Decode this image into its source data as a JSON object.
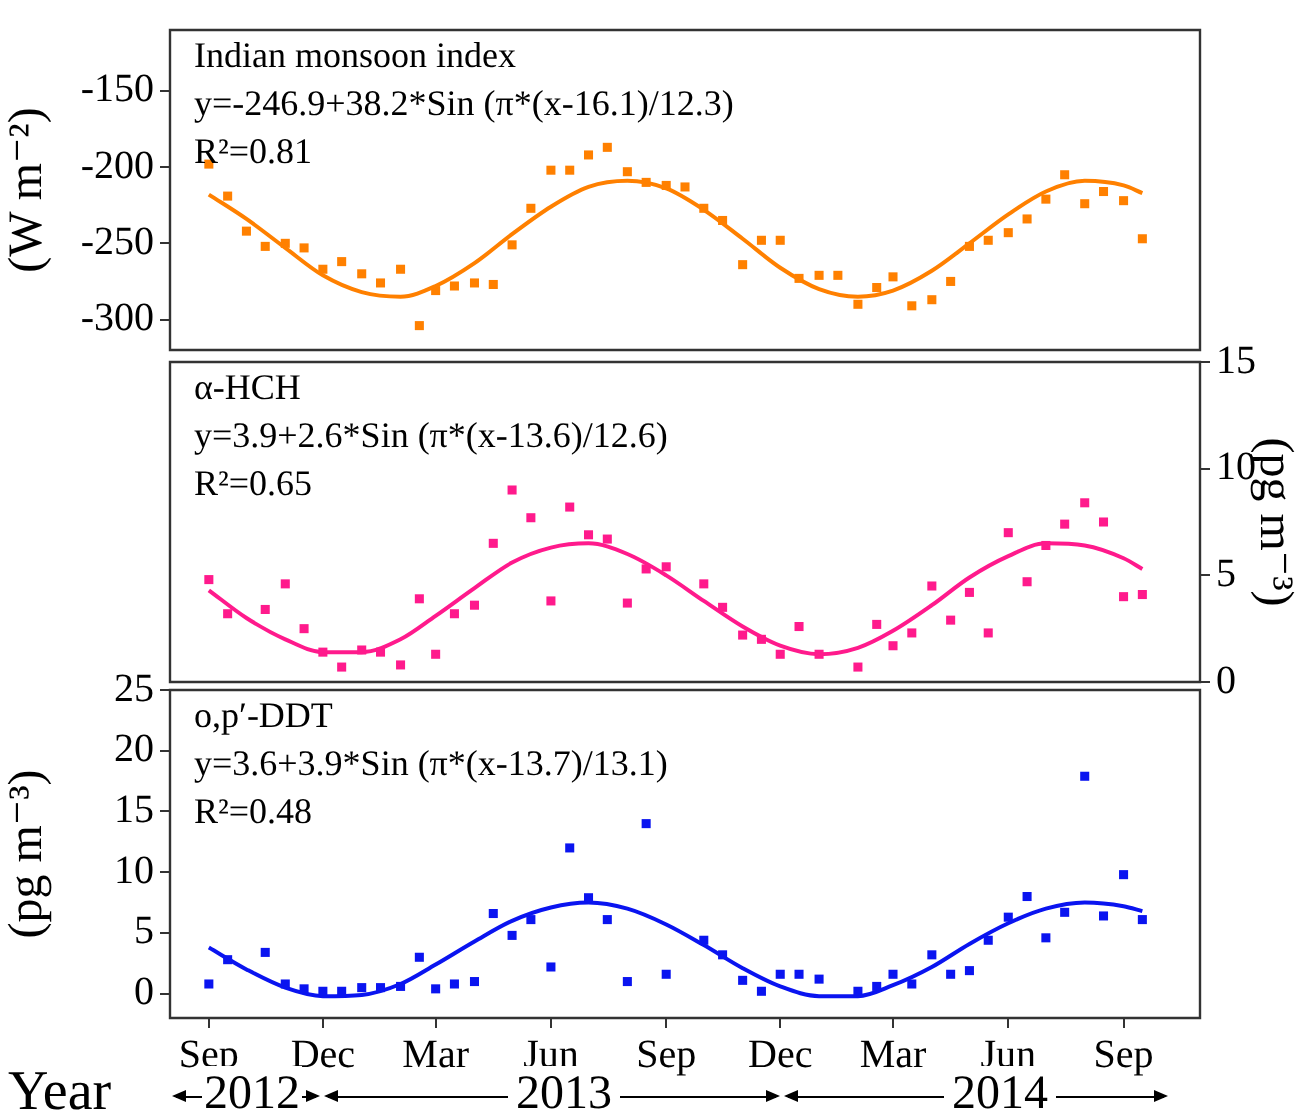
{
  "chart_data": [
    {
      "type": "scatter",
      "ylabel": "(W m⁻²)",
      "xlim": [
        "2012-08-01",
        "2014-11-01"
      ],
      "ylim": [
        -320,
        -110
      ],
      "yticks": [
        -150,
        -200,
        -250,
        -300
      ],
      "tick_labels": "y",
      "grid": false,
      "legend": false,
      "marker": "square",
      "annotations": [
        "Indian monsoon index",
        "y=-246.9+38.2*Sin (π*(x-16.1)/12.3)",
        "R²=0.81"
      ],
      "x": [
        "2012-09-01",
        "2012-09-16",
        "2012-10-01",
        "2012-10-16",
        "2012-11-01",
        "2012-11-16",
        "2012-12-01",
        "2012-12-16",
        "2013-01-01",
        "2013-01-16",
        "2013-02-01",
        "2013-02-16",
        "2013-03-01",
        "2013-03-16",
        "2013-04-01",
        "2013-04-16",
        "2013-05-01",
        "2013-05-16",
        "2013-06-01",
        "2013-06-16",
        "2013-07-01",
        "2013-07-16",
        "2013-08-01",
        "2013-08-16",
        "2013-09-01",
        "2013-09-16",
        "2013-10-01",
        "2013-10-16",
        "2013-11-01",
        "2013-11-16",
        "2013-12-01",
        "2013-12-16",
        "2014-01-01",
        "2014-01-16",
        "2014-02-01",
        "2014-02-16",
        "2014-03-01",
        "2014-03-16",
        "2014-04-01",
        "2014-04-16",
        "2014-05-01",
        "2014-05-16",
        "2014-06-01",
        "2014-06-16",
        "2014-07-01",
        "2014-07-16",
        "2014-08-01",
        "2014-08-16",
        "2014-09-01",
        "2014-09-16"
      ],
      "series": [
        {
          "type": "scatter",
          "color": "#ff8000",
          "values": [
            -198,
            -219,
            -242,
            -252,
            -250,
            -253,
            -267,
            -262,
            -270,
            -276,
            -267,
            -304,
            -281,
            -278,
            -276,
            -277,
            -251,
            -227,
            -202,
            -202,
            -192,
            -187,
            -203,
            -210,
            -212,
            -213,
            -227,
            -235,
            -264,
            -248,
            -248,
            -273,
            -271,
            -271,
            -290,
            -279,
            -272,
            -291,
            -287,
            -275,
            -252,
            -248,
            -243,
            -234,
            -221,
            -205,
            -224,
            -216,
            -222,
            -247
          ]
        },
        {
          "type": "line",
          "color": "#ff8000",
          "marker": "none",
          "x": [
            "2012-09-01",
            "2012-10-01",
            "2012-11-01",
            "2012-12-01",
            "2013-01-01",
            "2013-02-01",
            "2013-03-01",
            "2013-04-01",
            "2013-05-01",
            "2013-06-01",
            "2013-07-01",
            "2013-08-01",
            "2013-09-01",
            "2013-10-01",
            "2013-11-01",
            "2013-12-01",
            "2014-01-01",
            "2014-02-01",
            "2014-03-01",
            "2014-04-01",
            "2014-05-01",
            "2014-06-01",
            "2014-07-01",
            "2014-08-01",
            "2014-09-01",
            "2014-09-16"
          ],
          "values": [
            -218,
            -234,
            -253,
            -271,
            -282,
            -285,
            -278,
            -263,
            -244,
            -226,
            -213,
            -209,
            -214,
            -228,
            -247,
            -266,
            -280,
            -285,
            -281,
            -268,
            -250,
            -231,
            -216,
            -209,
            -212,
            -217
          ]
        }
      ]
    },
    {
      "type": "scatter",
      "y2label": "(pg m⁻³)",
      "xlim": [
        "2012-08-01",
        "2014-11-01"
      ],
      "y2lim": [
        0,
        15
      ],
      "y2ticks": [
        0,
        5,
        10,
        15
      ],
      "tick_labels": "y",
      "grid": false,
      "legend": false,
      "marker": "square",
      "annotations": [
        "α-HCH",
        "y=3.9+2.6*Sin (π*(x-13.6)/12.6)",
        "R²=0.65"
      ],
      "x": [
        "2012-09-01",
        "2012-09-16",
        "2012-10-01",
        "2012-10-16",
        "2012-11-01",
        "2012-11-16",
        "2012-12-01",
        "2012-12-16",
        "2013-01-01",
        "2013-01-16",
        "2013-02-01",
        "2013-02-16",
        "2013-03-01",
        "2013-03-16",
        "2013-04-01",
        "2013-04-16",
        "2013-05-01",
        "2013-05-16",
        "2013-06-01",
        "2013-06-16",
        "2013-07-01",
        "2013-07-16",
        "2013-08-01",
        "2013-08-16",
        "2013-09-01",
        "2013-09-16",
        "2013-10-01",
        "2013-10-16",
        "2013-11-01",
        "2013-11-16",
        "2013-12-01",
        "2013-12-16",
        "2014-01-01",
        "2014-01-16",
        "2014-02-01",
        "2014-02-16",
        "2014-03-01",
        "2014-03-16",
        "2014-04-01",
        "2014-04-16",
        "2014-05-01",
        "2014-05-16",
        "2014-06-01",
        "2014-06-16",
        "2014-07-01",
        "2014-07-16",
        "2014-08-01",
        "2014-08-16",
        "2014-09-01",
        "2014-09-16"
      ],
      "series": [
        {
          "type": "scatter",
          "axis": "y2",
          "color": "#ff1a8c",
          "values": [
            4.8,
            3.2,
            null,
            3.4,
            4.6,
            2.5,
            1.4,
            0.7,
            1.5,
            1.4,
            0.8,
            3.9,
            1.3,
            3.2,
            3.6,
            6.5,
            9.0,
            7.7,
            3.8,
            8.2,
            6.9,
            6.7,
            3.7,
            5.3,
            5.4,
            null,
            4.6,
            3.5,
            2.2,
            2.0,
            1.3,
            2.6,
            1.3,
            null,
            0.7,
            2.7,
            1.7,
            2.3,
            4.5,
            2.9,
            4.2,
            2.3,
            7.0,
            4.7,
            6.4,
            7.4,
            8.4,
            7.5,
            4.0,
            4.1
          ]
        },
        {
          "type": "line",
          "axis": "y2",
          "color": "#ff1a8c",
          "marker": "none",
          "x": [
            "2012-09-01",
            "2012-10-01",
            "2012-11-01",
            "2012-12-01",
            "2013-01-01",
            "2013-02-01",
            "2013-03-01",
            "2013-04-01",
            "2013-05-01",
            "2013-06-01",
            "2013-07-01",
            "2013-08-01",
            "2013-09-01",
            "2013-10-01",
            "2013-11-01",
            "2013-12-01",
            "2014-01-01",
            "2014-02-01",
            "2014-03-01",
            "2014-04-01",
            "2014-05-01",
            "2014-06-01",
            "2014-07-01",
            "2014-08-01",
            "2014-09-01",
            "2014-09-16"
          ],
          "values": [
            4.3,
            3.0,
            2.0,
            1.4,
            1.4,
            2.0,
            3.1,
            4.4,
            5.6,
            6.3,
            6.5,
            6.0,
            5.0,
            3.8,
            2.6,
            1.7,
            1.3,
            1.6,
            2.4,
            3.6,
            4.9,
            5.9,
            6.5,
            6.4,
            5.8,
            5.3
          ]
        }
      ]
    },
    {
      "type": "scatter",
      "ylabel": "(pg m⁻³)",
      "xlabel": "Year",
      "xlim": [
        "2012-08-01",
        "2014-11-01"
      ],
      "xticks": [
        {
          "value": "2012-09-01",
          "label": "Sep"
        },
        {
          "value": "2012-12-01",
          "label": "Dec"
        },
        {
          "value": "2013-03-01",
          "label": "Mar"
        },
        {
          "value": "2013-06-01",
          "label": "Jun"
        },
        {
          "value": "2013-09-01",
          "label": "Sep"
        },
        {
          "value": "2013-12-01",
          "label": "Dec"
        },
        {
          "value": "2014-03-01",
          "label": "Mar"
        },
        {
          "value": "2014-06-01",
          "label": "Jun"
        },
        {
          "value": "2014-09-01",
          "label": "Sep"
        }
      ],
      "ylim": [
        -2,
        25
      ],
      "yticks": [
        0,
        5,
        10,
        15,
        20,
        25
      ],
      "grid": false,
      "legend": false,
      "marker": "square",
      "annotations": [
        "o,p′-DDT",
        "y=3.6+3.9*Sin (π*(x-13.7)/13.1)",
        "R²=0.48",
        "2012",
        "2013",
        "2014"
      ],
      "x": [
        "2012-09-01",
        "2012-09-16",
        "2012-10-01",
        "2012-10-16",
        "2012-11-01",
        "2012-11-16",
        "2012-12-01",
        "2012-12-16",
        "2013-01-01",
        "2013-01-16",
        "2013-02-01",
        "2013-02-16",
        "2013-03-01",
        "2013-03-16",
        "2013-04-01",
        "2013-04-16",
        "2013-05-01",
        "2013-05-16",
        "2013-06-01",
        "2013-06-16",
        "2013-07-01",
        "2013-07-16",
        "2013-08-01",
        "2013-08-16",
        "2013-09-01",
        "2013-09-16",
        "2013-10-01",
        "2013-10-16",
        "2013-11-01",
        "2013-11-16",
        "2013-12-01",
        "2013-12-16",
        "2014-01-01",
        "2014-01-16",
        "2014-02-01",
        "2014-02-16",
        "2014-03-01",
        "2014-03-16",
        "2014-04-01",
        "2014-04-16",
        "2014-05-01",
        "2014-05-16",
        "2014-06-01",
        "2014-06-16",
        "2014-07-01",
        "2014-07-16",
        "2014-08-01",
        "2014-08-16",
        "2014-09-01",
        "2014-09-16"
      ],
      "series": [
        {
          "type": "scatter",
          "color": "#0a14f0",
          "values": [
            0.8,
            2.8,
            null,
            3.4,
            0.8,
            0.4,
            0.2,
            0.2,
            0.5,
            0.5,
            0.6,
            3.0,
            0.4,
            0.8,
            1.0,
            6.6,
            4.8,
            6.1,
            2.2,
            12.0,
            7.9,
            6.1,
            1.0,
            14.0,
            1.6,
            null,
            4.4,
            3.2,
            1.1,
            0.2,
            1.6,
            1.6,
            1.2,
            null,
            0.2,
            0.6,
            1.6,
            0.8,
            3.2,
            1.6,
            1.9,
            4.4,
            6.3,
            8.0,
            4.6,
            6.7,
            17.9,
            6.4,
            9.8,
            6.1
          ]
        },
        {
          "type": "line",
          "color": "#0a14f0",
          "marker": "none",
          "x": [
            "2012-09-01",
            "2012-10-01",
            "2012-11-01",
            "2012-12-01",
            "2013-01-01",
            "2013-02-01",
            "2013-03-01",
            "2013-04-01",
            "2013-05-01",
            "2013-06-01",
            "2013-07-01",
            "2013-08-01",
            "2013-09-01",
            "2013-10-01",
            "2013-11-01",
            "2013-12-01",
            "2014-01-01",
            "2014-02-01",
            "2014-03-01",
            "2014-04-01",
            "2014-05-01",
            "2014-06-01",
            "2014-07-01",
            "2014-08-01",
            "2014-09-01",
            "2014-09-16"
          ],
          "values": [
            3.8,
            2.0,
            0.5,
            -0.2,
            -0.1,
            0.8,
            2.4,
            4.3,
            6.0,
            7.1,
            7.5,
            7.0,
            5.7,
            4.0,
            2.1,
            0.6,
            -0.2,
            -0.2,
            0.7,
            2.2,
            4.1,
            5.8,
            7.0,
            7.5,
            7.2,
            6.8
          ]
        }
      ]
    }
  ]
}
